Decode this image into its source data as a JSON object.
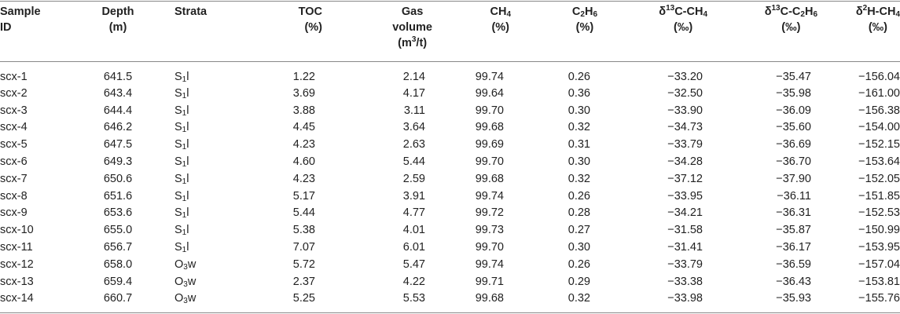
{
  "headers": {
    "sample_id": [
      "Sample",
      "ID"
    ],
    "depth": [
      "Depth",
      "(m)"
    ],
    "strata": "Strata",
    "toc": [
      "TOC",
      "(%)"
    ],
    "gas_volume": [
      "Gas",
      "volume",
      "(m",
      "3",
      "/t)"
    ],
    "ch4": [
      "CH",
      "4",
      "(%)"
    ],
    "c2h6": [
      "C",
      "2",
      "H",
      "6",
      "(%)"
    ],
    "d13c_ch4": [
      "δ",
      "13",
      "C-CH",
      "4",
      "(‰)"
    ],
    "d13c_c2h6": [
      "δ",
      "13",
      "C-C",
      "2",
      "H",
      "6",
      "(‰)"
    ],
    "d2h_ch4": [
      "δ",
      "2",
      "H-CH",
      "4",
      "(‰)"
    ]
  },
  "rows": [
    {
      "id": "scx-1",
      "depth": "641.5",
      "strata_a": "S",
      "strata_sub": "1",
      "strata_b": "l",
      "toc": "1.22",
      "gas": "2.14",
      "ch4": "99.74",
      "c2h6": "0.26",
      "d13c_ch4": "−33.20",
      "d13c_c2h6": "−35.47",
      "d2h_ch4": "−156.04"
    },
    {
      "id": "scx-2",
      "depth": "643.4",
      "strata_a": "S",
      "strata_sub": "1",
      "strata_b": "l",
      "toc": "3.69",
      "gas": "4.17",
      "ch4": "99.64",
      "c2h6": "0.36",
      "d13c_ch4": "−32.50",
      "d13c_c2h6": "−35.98",
      "d2h_ch4": "−161.00"
    },
    {
      "id": "scx-3",
      "depth": "644.4",
      "strata_a": "S",
      "strata_sub": "1",
      "strata_b": "l",
      "toc": "3.88",
      "gas": "3.11",
      "ch4": "99.70",
      "c2h6": "0.30",
      "d13c_ch4": "−33.90",
      "d13c_c2h6": "−36.09",
      "d2h_ch4": "−156.38"
    },
    {
      "id": "scx-4",
      "depth": "646.2",
      "strata_a": "S",
      "strata_sub": "1",
      "strata_b": "l",
      "toc": "4.45",
      "gas": "3.64",
      "ch4": "99.68",
      "c2h6": "0.32",
      "d13c_ch4": "−34.73",
      "d13c_c2h6": "−35.60",
      "d2h_ch4": "−154.00"
    },
    {
      "id": "scx-5",
      "depth": "647.5",
      "strata_a": "S",
      "strata_sub": "1",
      "strata_b": "l",
      "toc": "4.23",
      "gas": "2.63",
      "ch4": "99.69",
      "c2h6": "0.31",
      "d13c_ch4": "−33.79",
      "d13c_c2h6": "−36.69",
      "d2h_ch4": "−152.15"
    },
    {
      "id": "scx-6",
      "depth": "649.3",
      "strata_a": "S",
      "strata_sub": "1",
      "strata_b": "l",
      "toc": "4.60",
      "gas": "5.44",
      "ch4": "99.70",
      "c2h6": "0.30",
      "d13c_ch4": "−34.28",
      "d13c_c2h6": "−36.70",
      "d2h_ch4": "−153.64"
    },
    {
      "id": "scx-7",
      "depth": "650.6",
      "strata_a": "S",
      "strata_sub": "1",
      "strata_b": "l",
      "toc": "4.23",
      "gas": "2.59",
      "ch4": "99.68",
      "c2h6": "0.32",
      "d13c_ch4": "−37.12",
      "d13c_c2h6": "−37.90",
      "d2h_ch4": "−152.05"
    },
    {
      "id": "scx-8",
      "depth": "651.6",
      "strata_a": "S",
      "strata_sub": "1",
      "strata_b": "l",
      "toc": "5.17",
      "gas": "3.91",
      "ch4": "99.74",
      "c2h6": "0.26",
      "d13c_ch4": "−33.95",
      "d13c_c2h6": "−36.11",
      "d2h_ch4": "−151.85"
    },
    {
      "id": "scx-9",
      "depth": "653.6",
      "strata_a": "S",
      "strata_sub": "1",
      "strata_b": "l",
      "toc": "5.44",
      "gas": "4.77",
      "ch4": "99.72",
      "c2h6": "0.28",
      "d13c_ch4": "−34.21",
      "d13c_c2h6": "−36.31",
      "d2h_ch4": "−152.53"
    },
    {
      "id": "scx-10",
      "depth": "655.0",
      "strata_a": "S",
      "strata_sub": "1",
      "strata_b": "l",
      "toc": "5.38",
      "gas": "4.01",
      "ch4": "99.73",
      "c2h6": "0.27",
      "d13c_ch4": "−31.58",
      "d13c_c2h6": "−35.87",
      "d2h_ch4": "−150.99"
    },
    {
      "id": "scx-11",
      "depth": "656.7",
      "strata_a": "S",
      "strata_sub": "1",
      "strata_b": "l",
      "toc": "7.07",
      "gas": "6.01",
      "ch4": "99.70",
      "c2h6": "0.30",
      "d13c_ch4": "−31.41",
      "d13c_c2h6": "−36.17",
      "d2h_ch4": "−153.95"
    },
    {
      "id": "scx-12",
      "depth": "658.0",
      "strata_a": "O",
      "strata_sub": "3",
      "strata_b": "w",
      "toc": "5.72",
      "gas": "5.47",
      "ch4": "99.74",
      "c2h6": "0.26",
      "d13c_ch4": "−33.79",
      "d13c_c2h6": "−36.59",
      "d2h_ch4": "−157.04"
    },
    {
      "id": "scx-13",
      "depth": "659.4",
      "strata_a": "O",
      "strata_sub": "3",
      "strata_b": "w",
      "toc": "2.37",
      "gas": "4.22",
      "ch4": "99.71",
      "c2h6": "0.29",
      "d13c_ch4": "−33.38",
      "d13c_c2h6": "−36.43",
      "d2h_ch4": "−153.81"
    },
    {
      "id": "scx-14",
      "depth": "660.7",
      "strata_a": "O",
      "strata_sub": "3",
      "strata_b": "w",
      "toc": "5.25",
      "gas": "5.53",
      "ch4": "99.68",
      "c2h6": "0.32",
      "d13c_ch4": "−33.98",
      "d13c_c2h6": "−35.93",
      "d2h_ch4": "−155.76"
    }
  ]
}
